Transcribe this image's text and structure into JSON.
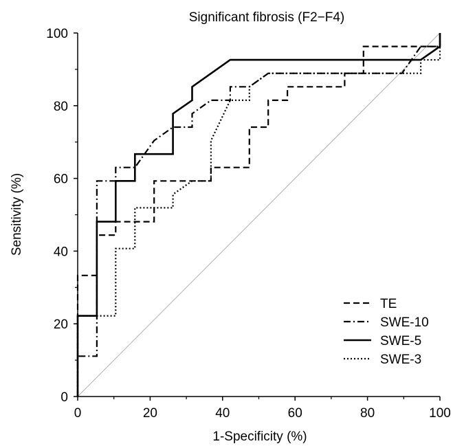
{
  "chart_data": {
    "type": "line",
    "title": "Significant fibrosis (F2−F4)",
    "xlabel": "1-Specificity (%)",
    "ylabel": "Sensitivity (%)",
    "xlim": [
      0,
      100
    ],
    "ylim": [
      0,
      100
    ],
    "x_ticks": [
      0,
      20,
      40,
      60,
      80,
      100
    ],
    "y_ticks": [
      0,
      20,
      40,
      60,
      80,
      100
    ],
    "x_tick_labels": [
      "0",
      "20",
      "40",
      "60",
      "80",
      "100"
    ],
    "y_tick_labels": [
      "0",
      "20",
      "40",
      "60",
      "80",
      "100"
    ],
    "grid": false,
    "legend_position": "bottom-right",
    "reference_line": {
      "x": [
        0,
        100
      ],
      "y": [
        0,
        100
      ],
      "color": "#b0b0b0"
    },
    "series": [
      {
        "name": "TE",
        "style": "dashed",
        "color": "#000000",
        "points": [
          [
            0,
            0
          ],
          [
            0,
            33.3
          ],
          [
            5.3,
            33.3
          ],
          [
            5.3,
            44.4
          ],
          [
            10.5,
            44.4
          ],
          [
            10.5,
            48.1
          ],
          [
            21.1,
            48.1
          ],
          [
            21.1,
            59.3
          ],
          [
            36.8,
            59.3
          ],
          [
            36.8,
            63
          ],
          [
            47.4,
            63
          ],
          [
            47.4,
            74.1
          ],
          [
            52.6,
            74.1
          ],
          [
            52.6,
            81.5
          ],
          [
            57.9,
            81.5
          ],
          [
            57.9,
            85.2
          ],
          [
            73.7,
            85.2
          ],
          [
            73.7,
            88.9
          ],
          [
            78.9,
            88.9
          ],
          [
            78.9,
            96.3
          ],
          [
            100,
            96.3
          ],
          [
            100,
            100
          ]
        ]
      },
      {
        "name": "SWE-10",
        "style": "dash-dot",
        "color": "#000000",
        "points": [
          [
            0,
            0
          ],
          [
            0,
            11.1
          ],
          [
            5.3,
            11.1
          ],
          [
            5.3,
            59.3
          ],
          [
            10.5,
            59.3
          ],
          [
            10.5,
            63
          ],
          [
            15.8,
            63
          ],
          [
            21.1,
            70.4
          ],
          [
            26.3,
            74.1
          ],
          [
            31.6,
            74.1
          ],
          [
            31.6,
            77.8
          ],
          [
            36.8,
            81.5
          ],
          [
            42.1,
            81.5
          ],
          [
            42.1,
            85.2
          ],
          [
            47.4,
            85.2
          ],
          [
            52.6,
            88.9
          ],
          [
            89.5,
            88.9
          ],
          [
            94.7,
            96.3
          ],
          [
            100,
            96.3
          ]
        ]
      },
      {
        "name": "SWE-5",
        "style": "solid",
        "color": "#000000",
        "points": [
          [
            0,
            0
          ],
          [
            0,
            22.2
          ],
          [
            5.3,
            22.2
          ],
          [
            5.3,
            48.1
          ],
          [
            10.5,
            48.1
          ],
          [
            10.5,
            59.3
          ],
          [
            15.8,
            59.3
          ],
          [
            15.8,
            66.7
          ],
          [
            26.3,
            66.7
          ],
          [
            26.3,
            77.8
          ],
          [
            31.6,
            81.5
          ],
          [
            31.6,
            85.2
          ],
          [
            42.1,
            92.6
          ],
          [
            94.7,
            92.6
          ],
          [
            100,
            96.3
          ],
          [
            100,
            100
          ]
        ]
      },
      {
        "name": "SWE-3",
        "style": "dotted",
        "color": "#000000",
        "points": [
          [
            0,
            0
          ],
          [
            0,
            22.2
          ],
          [
            10.5,
            22.2
          ],
          [
            10.5,
            40.7
          ],
          [
            15.8,
            40.7
          ],
          [
            15.8,
            51.9
          ],
          [
            26.3,
            51.9
          ],
          [
            26.3,
            55.6
          ],
          [
            31.6,
            59.3
          ],
          [
            36.8,
            59.3
          ],
          [
            36.8,
            70.4
          ],
          [
            42.1,
            81.5
          ],
          [
            47.4,
            81.5
          ],
          [
            47.4,
            85.2
          ],
          [
            52.6,
            88.9
          ],
          [
            94.7,
            88.9
          ],
          [
            94.7,
            92.6
          ],
          [
            100,
            92.6
          ],
          [
            100,
            100
          ]
        ]
      }
    ]
  }
}
